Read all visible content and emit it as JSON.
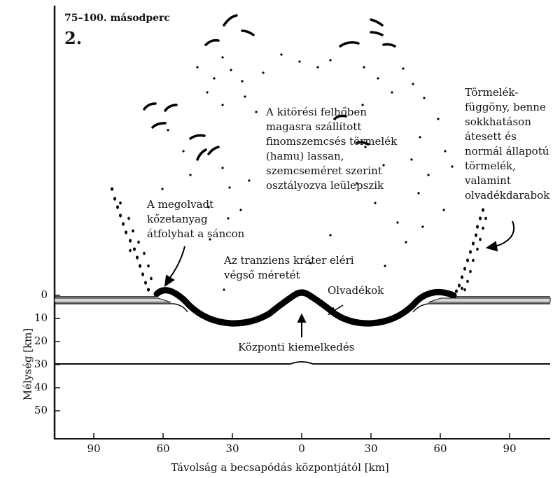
{
  "header": {
    "time": "75–100. másodperc",
    "panel": "2."
  },
  "labels": {
    "ash_cloud": "A kitörési felhőben\nmagasra szállított\nfinomszemcsés törmelék\n(hamu) lassan,\nszemcseméret szerint\nosztályozva leülepszik",
    "debris_curtain": "Törmelék-\nfüggöny, benne\nsokkhatáson\nátesett és\nnormál állapotú\ntörmelék,\nvalamint\nolvadékdarabok",
    "melt_overflow": "A megolvadt\nkőzetanyag\nátfolyhat a sáncon",
    "transient_crater": "Az tranziens kráter eléri\nvégső méretét",
    "melts": "Olvadékok",
    "central_uplift": "Központi kiemelkedés"
  },
  "axes": {
    "ylabel": "Mélység [km]",
    "xlabel": "Távolság a becsapódás központjától [km]",
    "y_ticks": [
      "0",
      "10",
      "20",
      "30",
      "40",
      "50"
    ],
    "x_ticks": [
      "90",
      "60",
      "30",
      "0",
      "30",
      "60",
      "90"
    ]
  },
  "colors": {
    "ink": "#111111",
    "background": "#ffffff"
  }
}
